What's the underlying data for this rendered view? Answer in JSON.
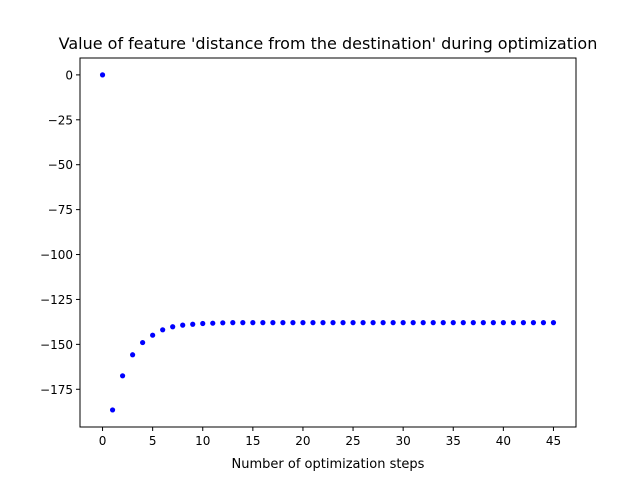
{
  "chart_data": {
    "type": "scatter",
    "title": "Value of feature 'distance from the destination' during optimization",
    "xlabel": "Number of optimization steps",
    "ylabel": "",
    "xlim": [
      -2.25,
      47.25
    ],
    "ylim": [
      -196.0,
      9.4
    ],
    "xticks": [
      0,
      5,
      10,
      15,
      20,
      25,
      30,
      35,
      40,
      45
    ],
    "xtick_labels": [
      "0",
      "5",
      "10",
      "15",
      "20",
      "25",
      "30",
      "35",
      "40",
      "45"
    ],
    "yticks": [
      0,
      -25,
      -50,
      -75,
      -100,
      -125,
      -150,
      -175
    ],
    "ytick_labels": [
      "0",
      "−25",
      "−50",
      "−75",
      "−100",
      "−125",
      "−150",
      "−175"
    ],
    "grid": false,
    "series": [
      {
        "color": "#0000ff",
        "marker": "circle",
        "x": [
          0,
          1,
          2,
          3,
          4,
          5,
          6,
          7,
          8,
          9,
          10,
          11,
          12,
          13,
          14,
          15,
          16,
          17,
          18,
          19,
          20,
          21,
          22,
          23,
          24,
          25,
          26,
          27,
          28,
          29,
          30,
          31,
          32,
          33,
          34,
          35,
          36,
          37,
          38,
          39,
          40,
          41,
          42,
          43,
          44,
          45
        ],
        "y": [
          0,
          -186.5,
          -167.5,
          -155.8,
          -149.0,
          -144.9,
          -141.9,
          -140.2,
          -139.3,
          -138.8,
          -138.4,
          -138.2,
          -138.0,
          -137.9,
          -137.9,
          -137.9,
          -137.9,
          -137.9,
          -137.9,
          -137.9,
          -137.9,
          -137.9,
          -137.9,
          -137.9,
          -137.9,
          -137.9,
          -137.9,
          -137.9,
          -137.9,
          -137.9,
          -137.9,
          -137.9,
          -137.9,
          -137.9,
          -137.9,
          -137.9,
          -137.9,
          -137.9,
          -137.9,
          -137.9,
          -137.9,
          -137.9,
          -137.9,
          -137.9,
          -137.9,
          -137.9
        ]
      }
    ]
  }
}
